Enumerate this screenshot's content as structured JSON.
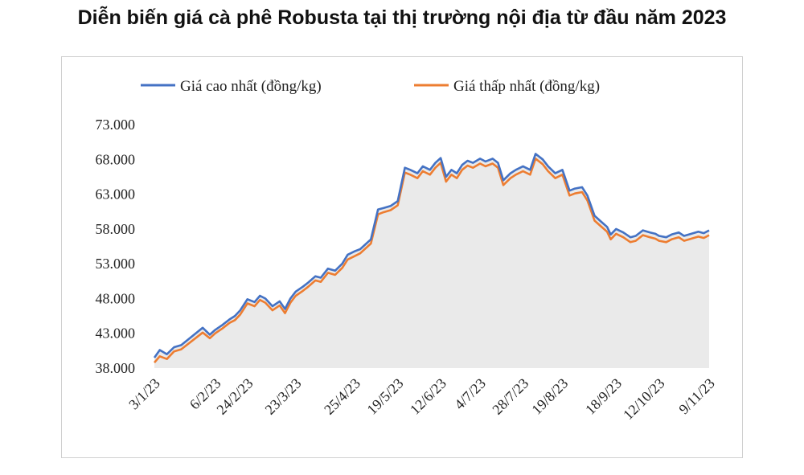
{
  "title": "Diễn biến giá cà phê Robusta tại thị trường nội địa từ đầu năm 2023",
  "colors": {
    "high": "#4472C4",
    "low": "#ED7D31",
    "fill": "#d9d9d9"
  },
  "chart_data": {
    "type": "line",
    "title": "Diễn biến giá cà phê Robusta tại thị trường nội địa từ đầu năm 2023",
    "xlabel": "",
    "ylabel": "",
    "ylim": [
      38000,
      73000
    ],
    "yticks": [
      38000,
      43000,
      48000,
      53000,
      58000,
      63000,
      68000,
      73000
    ],
    "ytick_labels": [
      "38.000",
      "43.000",
      "48.000",
      "53.000",
      "58.000",
      "63.000",
      "68.000",
      "73.000"
    ],
    "xtick_labels": [
      "3/1/23",
      "6/2/23",
      "24/2/23",
      "23/3/23",
      "25/4/23",
      "19/5/23",
      "12/6/23",
      "4/7/23",
      "28/7/23",
      "19/8/23",
      "18/9/23",
      "12/10/23",
      "9/11/23"
    ],
    "grid": false,
    "legend": "top",
    "series": [
      {
        "name": "Giá cao nhất (đồng/kg)",
        "color": "#4472C4",
        "x": [
          "3/1/23",
          "6/1/23",
          "10/1/23",
          "14/1/23",
          "18/1/23",
          "30/1/23",
          "3/2/23",
          "6/2/23",
          "10/2/23",
          "14/2/23",
          "17/2/23",
          "20/2/23",
          "24/2/23",
          "28/2/23",
          "3/3/23",
          "6/3/23",
          "10/3/23",
          "14/3/23",
          "17/3/23",
          "20/3/23",
          "23/3/23",
          "27/3/23",
          "30/3/23",
          "3/4/23",
          "6/4/23",
          "10/4/23",
          "14/4/23",
          "18/4/23",
          "21/4/23",
          "25/4/23",
          "28/4/23",
          "4/5/23",
          "8/5/23",
          "11/5/23",
          "15/5/23",
          "19/5/23",
          "23/5/23",
          "26/5/23",
          "30/5/23",
          "2/6/23",
          "6/6/23",
          "9/6/23",
          "12/6/23",
          "15/6/23",
          "18/6/23",
          "21/6/23",
          "24/6/23",
          "27/6/23",
          "30/6/23",
          "4/7/23",
          "7/7/23",
          "11/7/23",
          "14/7/23",
          "17/7/23",
          "21/7/23",
          "24/7/23",
          "28/7/23",
          "1/8/23",
          "4/8/23",
          "8/8/23",
          "11/8/23",
          "15/8/23",
          "19/8/23",
          "23/8/23",
          "26/8/23",
          "30/8/23",
          "2/9/23",
          "6/9/23",
          "9/9/23",
          "13/9/23",
          "15/9/23",
          "18/9/23",
          "22/9/23",
          "26/9/23",
          "29/9/23",
          "3/10/23",
          "7/10/23",
          "10/10/23",
          "12/10/23",
          "16/10/23",
          "19/10/23",
          "23/10/23",
          "26/10/23",
          "30/10/23",
          "3/11/23",
          "6/11/23",
          "9/11/23"
        ],
        "values": [
          39500,
          40600,
          40000,
          41000,
          41300,
          43800,
          42800,
          43500,
          44200,
          45000,
          45500,
          46300,
          47900,
          47500,
          48400,
          48000,
          46900,
          47600,
          46500,
          48000,
          49000,
          49700,
          50300,
          51200,
          51000,
          52300,
          52000,
          53000,
          54300,
          54800,
          55100,
          56500,
          60800,
          61000,
          61300,
          62000,
          66800,
          66500,
          66000,
          67000,
          66500,
          67500,
          68200,
          65500,
          66500,
          66000,
          67200,
          67800,
          67500,
          68100,
          67700,
          68100,
          67500,
          65000,
          66000,
          66500,
          67000,
          66500,
          68800,
          68000,
          67000,
          66000,
          66500,
          63500,
          63800,
          64000,
          62800,
          59900,
          59200,
          58300,
          57200,
          58000,
          57500,
          56800,
          57000,
          57800,
          57500,
          57300,
          57000,
          56800,
          57200,
          57500,
          57000,
          57300,
          57600,
          57400,
          57800
        ]
      },
      {
        "name": "Giá thấp nhất (đồng/kg)",
        "color": "#ED7D31",
        "x": [
          "3/1/23",
          "6/1/23",
          "10/1/23",
          "14/1/23",
          "18/1/23",
          "30/1/23",
          "3/2/23",
          "6/2/23",
          "10/2/23",
          "14/2/23",
          "17/2/23",
          "20/2/23",
          "24/2/23",
          "28/2/23",
          "3/3/23",
          "6/3/23",
          "10/3/23",
          "14/3/23",
          "17/3/23",
          "20/3/23",
          "23/3/23",
          "27/3/23",
          "30/3/23",
          "3/4/23",
          "6/4/23",
          "10/4/23",
          "14/4/23",
          "18/4/23",
          "21/4/23",
          "25/4/23",
          "28/4/23",
          "4/5/23",
          "8/5/23",
          "11/5/23",
          "15/5/23",
          "19/5/23",
          "23/5/23",
          "26/5/23",
          "30/5/23",
          "2/6/23",
          "6/6/23",
          "9/6/23",
          "12/6/23",
          "15/6/23",
          "18/6/23",
          "21/6/23",
          "24/6/23",
          "27/6/23",
          "30/6/23",
          "4/7/23",
          "7/7/23",
          "11/7/23",
          "14/7/23",
          "17/7/23",
          "21/7/23",
          "24/7/23",
          "28/7/23",
          "1/8/23",
          "4/8/23",
          "8/8/23",
          "11/8/23",
          "15/8/23",
          "19/8/23",
          "23/8/23",
          "26/8/23",
          "30/8/23",
          "2/9/23",
          "6/9/23",
          "9/9/23",
          "13/9/23",
          "15/9/23",
          "18/9/23",
          "22/9/23",
          "26/9/23",
          "29/9/23",
          "3/10/23",
          "7/10/23",
          "10/10/23",
          "12/10/23",
          "16/10/23",
          "19/10/23",
          "23/10/23",
          "26/10/23",
          "30/10/23",
          "3/11/23",
          "6/11/23",
          "9/11/23"
        ],
        "values": [
          38800,
          39700,
          39300,
          40400,
          40700,
          43100,
          42300,
          43000,
          43700,
          44500,
          44900,
          45700,
          47300,
          46900,
          47800,
          47400,
          46300,
          47000,
          45900,
          47400,
          48400,
          49100,
          49700,
          50600,
          50400,
          51700,
          51400,
          52400,
          53600,
          54100,
          54500,
          55900,
          60100,
          60400,
          60700,
          61400,
          66100,
          65800,
          65300,
          66300,
          65800,
          66800,
          67500,
          64800,
          65800,
          65300,
          66500,
          67100,
          66800,
          67400,
          67000,
          67400,
          66800,
          64300,
          65300,
          65800,
          66300,
          65800,
          68100,
          67300,
          66300,
          65300,
          65800,
          62800,
          63100,
          63300,
          62100,
          59200,
          58500,
          57600,
          56500,
          57300,
          56800,
          56100,
          56300,
          57100,
          56800,
          56600,
          56300,
          56100,
          56500,
          56800,
          56300,
          56600,
          56900,
          56700,
          57100
        ]
      }
    ]
  }
}
